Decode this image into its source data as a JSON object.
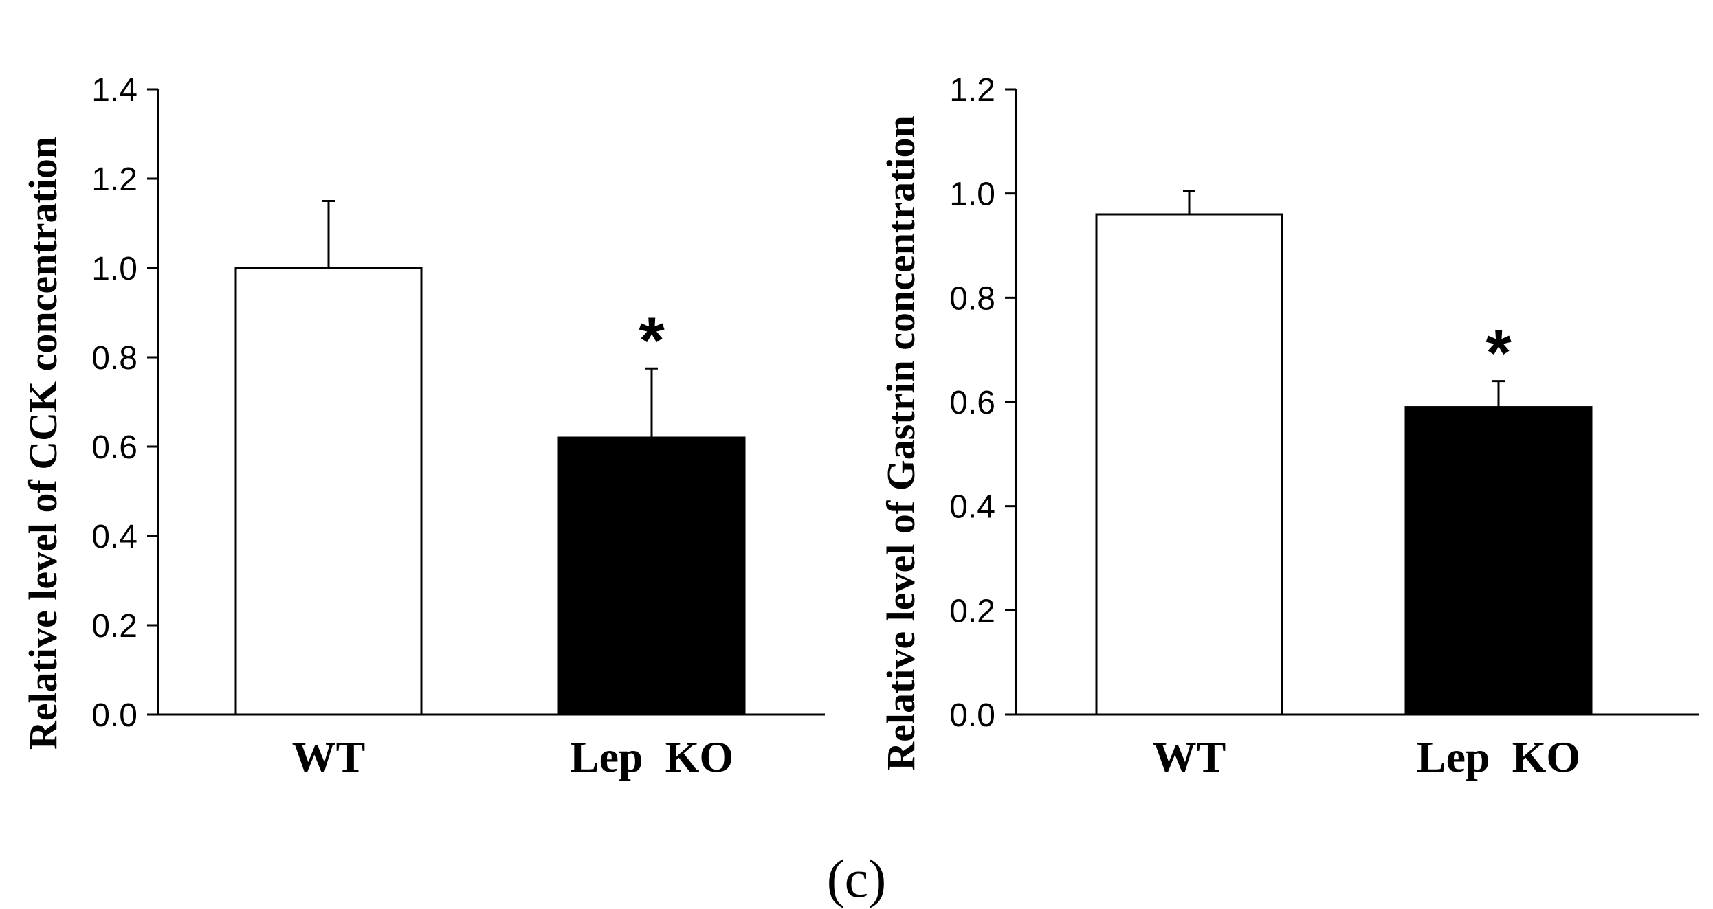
{
  "caption": "(c)",
  "chart_data": [
    {
      "type": "bar",
      "title": "",
      "xlabel": "",
      "ylabel": "Relative level of CCK concentration",
      "categories": [
        "WT",
        "Lep  KO"
      ],
      "values": [
        1.0,
        0.62
      ],
      "error": [
        0.15,
        0.155
      ],
      "ylim": [
        0,
        1.4
      ],
      "yticks": [
        0.0,
        0.2,
        0.4,
        0.6,
        0.8,
        1.0,
        1.2,
        1.4
      ],
      "ytick_labels": [
        "0.0",
        "0.2",
        "0.4",
        "0.6",
        "0.8",
        "1.0",
        "1.2",
        "1.4"
      ],
      "bar_colors": [
        "#ffffff",
        "#000000"
      ],
      "significance": [
        "",
        "*"
      ]
    },
    {
      "type": "bar",
      "title": "",
      "xlabel": "",
      "ylabel": "Relative level of Gastrin concentration",
      "categories": [
        "WT",
        "Lep  KO"
      ],
      "values": [
        0.96,
        0.59
      ],
      "error": [
        0.045,
        0.05
      ],
      "ylim": [
        0,
        1.2
      ],
      "yticks": [
        0.0,
        0.2,
        0.4,
        0.6,
        0.8,
        1.0,
        1.2
      ],
      "ytick_labels": [
        "0.0",
        "0.2",
        "0.4",
        "0.6",
        "0.8",
        "1.0",
        "1.2"
      ],
      "bar_colors": [
        "#ffffff",
        "#000000"
      ],
      "significance": [
        "",
        "*"
      ]
    }
  ]
}
